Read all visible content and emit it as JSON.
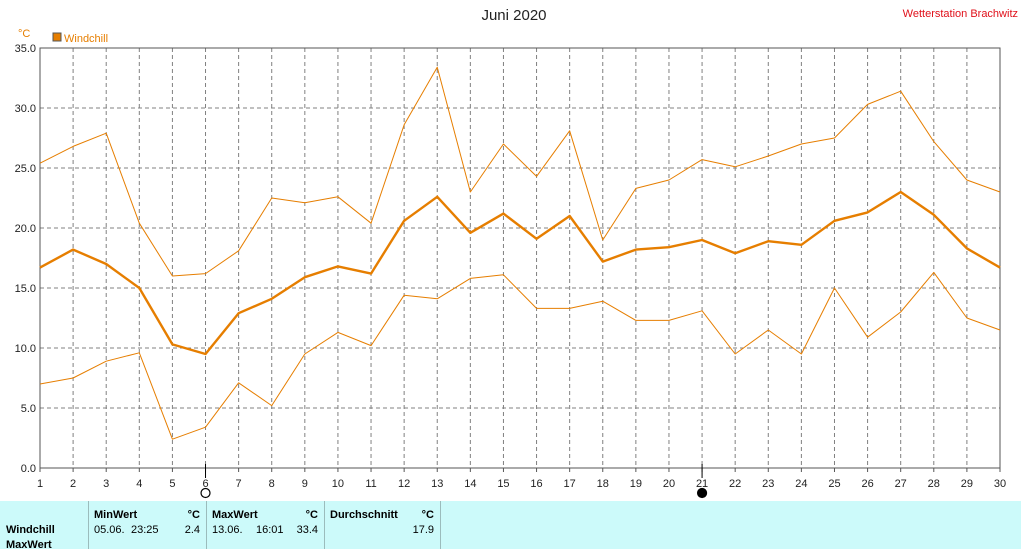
{
  "header": {
    "title": "Juni 2020",
    "station": "Wetterstation Brachwitz",
    "unit": "°C",
    "legend": "Windchill"
  },
  "colors": {
    "series": "#e67e00",
    "station": "#e0101a",
    "panel": "#ccfafa"
  },
  "chart_data": {
    "type": "line",
    "title": "Juni 2020",
    "ylabel": "°C",
    "ylim": [
      0,
      35
    ],
    "yticks": [
      "0.0",
      "5.0",
      "10.0",
      "15.0",
      "20.0",
      "25.0",
      "30.0",
      "35.0"
    ],
    "yticks_values": [
      0,
      5,
      10,
      15,
      20,
      25,
      30,
      35
    ],
    "x": [
      1,
      2,
      3,
      4,
      5,
      6,
      7,
      8,
      9,
      10,
      11,
      12,
      13,
      14,
      15,
      16,
      17,
      18,
      19,
      20,
      21,
      22,
      23,
      24,
      25,
      26,
      27,
      28,
      29,
      30
    ],
    "grid": true,
    "legend_position": "top-left",
    "series": [
      {
        "name": "Windchill",
        "values": [
          16.7,
          18.2,
          17.0,
          15.0,
          10.3,
          9.5,
          12.9,
          14.1,
          15.9,
          16.8,
          16.2,
          20.6,
          22.6,
          19.6,
          21.2,
          19.1,
          21.0,
          17.2,
          18.2,
          18.4,
          19.0,
          17.9,
          18.9,
          18.6,
          20.6,
          21.3,
          23.0,
          21.1,
          18.3,
          16.7
        ]
      },
      {
        "values": [
          25.4,
          26.8,
          27.9,
          20.4,
          16.0,
          16.2,
          18.1,
          22.5,
          22.1,
          22.6,
          20.4,
          28.6,
          33.4,
          23.0,
          27.0,
          24.3,
          28.1,
          19.0,
          23.3,
          24.0,
          25.7,
          25.1,
          26.0,
          27.0,
          27.5,
          30.3,
          31.4,
          27.2,
          24.0,
          23.0
        ]
      },
      {
        "values": [
          7.0,
          7.5,
          8.9,
          9.6,
          2.4,
          3.4,
          7.1,
          5.2,
          9.5,
          11.3,
          10.2,
          14.4,
          14.1,
          15.8,
          16.1,
          13.3,
          13.3,
          13.9,
          12.3,
          12.3,
          13.1,
          9.5,
          11.5,
          9.5,
          15.0,
          10.9,
          13.0,
          16.3,
          12.5,
          11.5
        ]
      }
    ],
    "moon_phases": [
      {
        "day": 6,
        "phase": "full"
      },
      {
        "day": 21,
        "phase": "new"
      }
    ]
  },
  "table": {
    "row_labels": [
      "Windchill",
      "MaxWert"
    ],
    "min": {
      "header": "MinWert",
      "unit": "°C",
      "date": "05.06.",
      "time": "23:25",
      "value": "2.4"
    },
    "max": {
      "header": "MaxWert",
      "unit": "°C",
      "date": "13.06.",
      "time": "16:01",
      "value": "33.4"
    },
    "avg": {
      "header": "Durchschnitt",
      "unit": "°C",
      "value": "17.9"
    }
  }
}
